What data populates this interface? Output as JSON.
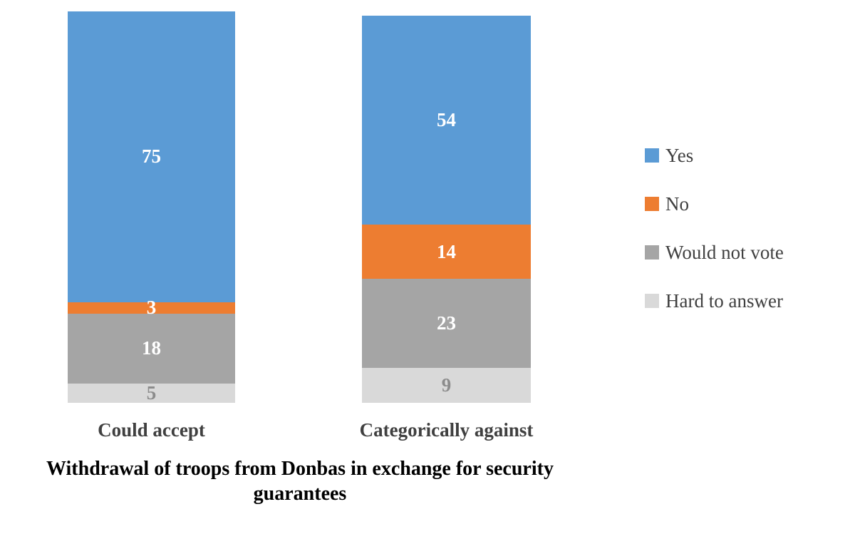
{
  "chart_data": {
    "type": "bar",
    "stacked": true,
    "title": "Withdrawal of troops from Donbas in exchange for security guarantees",
    "categories": [
      "Could accept",
      "Categorically against"
    ],
    "series": [
      {
        "name": "Yes",
        "color": "#5B9BD5",
        "label_color": "#FFFFFF",
        "values": [
          75,
          54
        ]
      },
      {
        "name": "No",
        "color": "#ED7D31",
        "label_color": "#FFFFFF",
        "values": [
          3,
          14
        ]
      },
      {
        "name": "Would not vote",
        "color": "#A5A5A5",
        "label_color": "#FFFFFF",
        "values": [
          18,
          23
        ]
      },
      {
        "name": "Hard to answer",
        "color": "#D9D9D9",
        "label_color": "#8C8C8C",
        "values": [
          5,
          9
        ]
      }
    ],
    "ylim": [
      0,
      101
    ],
    "grid": false,
    "legend_position": "right"
  }
}
